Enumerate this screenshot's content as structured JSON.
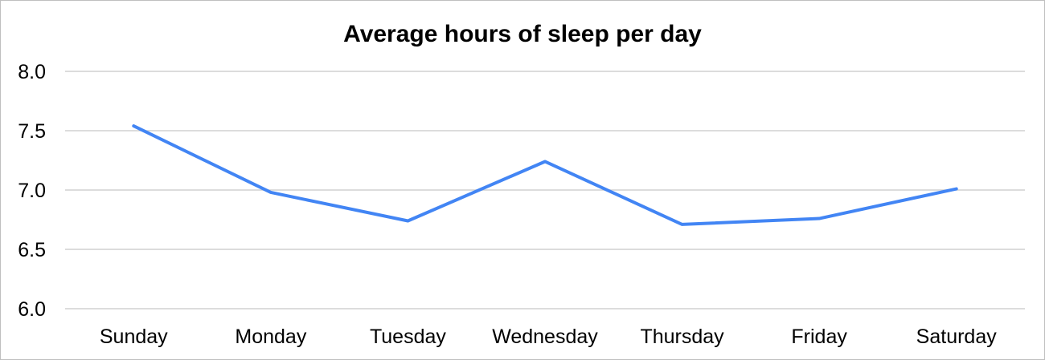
{
  "chart_data": {
    "type": "line",
    "title": "Average hours of sleep per day",
    "xlabel": "",
    "ylabel": "",
    "categories": [
      "Sunday",
      "Monday",
      "Tuesday",
      "Wednesday",
      "Thursday",
      "Friday",
      "Saturday"
    ],
    "series": [
      {
        "values": [
          7.54,
          6.98,
          6.74,
          7.24,
          6.71,
          6.76,
          7.01
        ],
        "color": "#4285f4"
      }
    ],
    "ylim": [
      6.0,
      8.0
    ],
    "yticks": [
      "6.0",
      "6.5",
      "7.0",
      "7.5",
      "8.0"
    ],
    "grid": true,
    "legend": "none"
  }
}
